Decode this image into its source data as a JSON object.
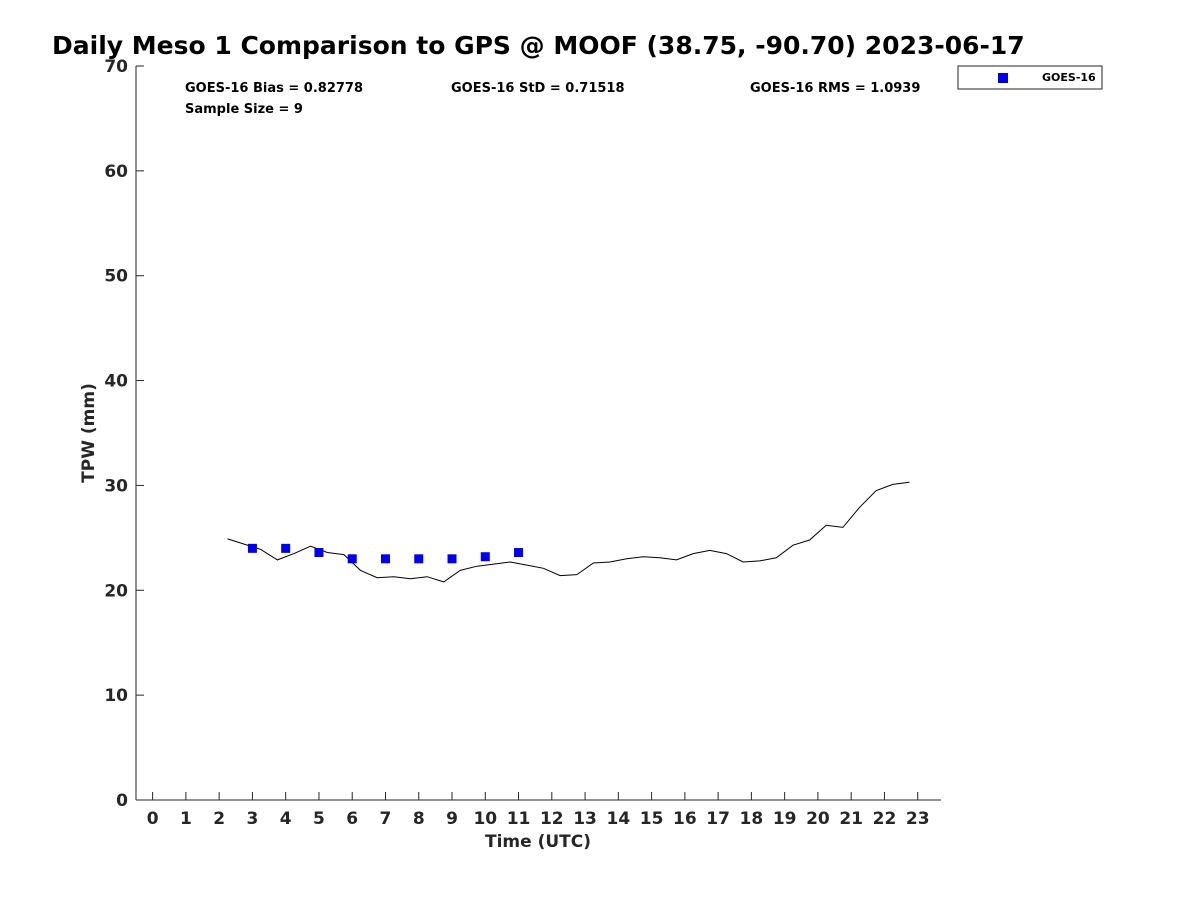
{
  "chart_data": {
    "type": "scatter",
    "title": "Daily Meso 1 Comparison to GPS @ MOOF (38.75, -90.70) 2023-06-17",
    "xlabel": "Time (UTC)",
    "ylabel": "TPW (mm)",
    "xlim": [
      -0.5,
      23.7
    ],
    "ylim": [
      0,
      70
    ],
    "x_ticks": [
      0,
      1,
      2,
      3,
      4,
      5,
      6,
      7,
      8,
      9,
      10,
      11,
      12,
      13,
      14,
      15,
      16,
      17,
      18,
      19,
      20,
      21,
      22,
      23
    ],
    "y_ticks": [
      0,
      10,
      20,
      30,
      40,
      50,
      60,
      70
    ],
    "grid": false,
    "legend_position": "top-right-outside",
    "stats": {
      "bias": "GOES-16 Bias = 0.82778",
      "std": "GOES-16 StD = 0.71518",
      "rms": "GOES-16 RMS = 1.0939",
      "sample": "Sample Size = 9"
    },
    "series": [
      {
        "name": "GOES-16",
        "kind": "scatter",
        "marker": "square",
        "color": "#0000ee",
        "x": [
          3,
          4,
          5,
          6,
          7,
          8,
          9,
          10,
          11
        ],
        "y": [
          24.0,
          24.0,
          23.6,
          23.0,
          23.0,
          23.0,
          23.0,
          23.2,
          23.6
        ]
      },
      {
        "kind": "line",
        "color": "#000000",
        "x": [
          2.25,
          2.75,
          3.25,
          3.75,
          4.25,
          4.75,
          5.25,
          5.75,
          6.25,
          6.75,
          7.25,
          7.75,
          8.25,
          8.75,
          9.25,
          9.75,
          10.25,
          10.75,
          11.25,
          11.75,
          12.25,
          12.75,
          13.25,
          13.75,
          14.25,
          14.75,
          15.25,
          15.75,
          16.25,
          16.75,
          17.25,
          17.75,
          18.25,
          18.75,
          19.25,
          19.75,
          20.25,
          20.75,
          21.25,
          21.75,
          22.25,
          22.75
        ],
        "y": [
          24.9,
          24.4,
          23.9,
          22.9,
          23.5,
          24.2,
          23.6,
          23.4,
          21.9,
          21.2,
          21.3,
          21.1,
          21.3,
          20.8,
          21.9,
          22.3,
          22.5,
          22.7,
          22.4,
          22.1,
          21.4,
          21.5,
          22.6,
          22.7,
          23.0,
          23.2,
          23.1,
          22.9,
          23.5,
          23.8,
          23.5,
          22.7,
          22.8,
          23.1,
          24.3,
          24.8,
          26.2,
          26.0,
          27.9,
          29.5,
          30.1,
          30.3
        ]
      }
    ]
  }
}
